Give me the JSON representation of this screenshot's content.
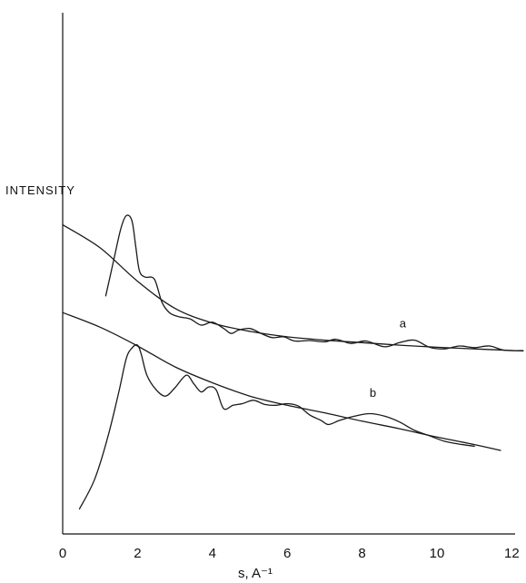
{
  "chart_data": {
    "type": "line",
    "ylabel": "INTENSITY",
    "xlabel": "s, A⁻¹",
    "xlim": [
      0,
      12.4
    ],
    "xticks": [
      "0",
      "2",
      "4",
      "6",
      "8",
      "10",
      "12"
    ],
    "grid": false,
    "series": [
      {
        "name": "a",
        "kind": "smooth",
        "x": [
          0,
          1,
          2,
          3,
          4,
          5,
          6,
          7,
          8,
          9,
          10,
          11,
          12.3
        ],
        "y": [
          7.4,
          6.85,
          6.05,
          5.4,
          5.05,
          4.85,
          4.72,
          4.64,
          4.58,
          4.52,
          4.47,
          4.43,
          4.38
        ]
      },
      {
        "name": "a",
        "kind": "experimental",
        "x": [
          1.15,
          1.35,
          1.55,
          1.7,
          1.85,
          1.95,
          2.05,
          2.2,
          2.45,
          2.65,
          2.85,
          3.1,
          3.4,
          3.7,
          4.0,
          4.3,
          4.5,
          4.7,
          5.0,
          5.3,
          5.6,
          5.9,
          6.2,
          6.6,
          7.0,
          7.3,
          7.7,
          8.1,
          8.6,
          9.0,
          9.4,
          9.8,
          10.2,
          10.6,
          11.0,
          11.4,
          11.8,
          12.3
        ],
        "y": [
          5.7,
          6.5,
          7.3,
          7.62,
          7.5,
          6.9,
          6.3,
          6.15,
          6.1,
          5.55,
          5.3,
          5.2,
          5.15,
          5.0,
          5.07,
          4.92,
          4.8,
          4.88,
          4.92,
          4.8,
          4.7,
          4.72,
          4.62,
          4.63,
          4.6,
          4.66,
          4.56,
          4.62,
          4.48,
          4.58,
          4.64,
          4.47,
          4.43,
          4.5,
          4.46,
          4.5,
          4.4,
          4.39
        ]
      },
      {
        "name": "b",
        "kind": "smooth",
        "x": [
          0,
          1,
          2,
          3,
          4,
          5,
          6,
          7,
          8,
          9,
          10,
          11,
          11.7
        ],
        "y": [
          5.3,
          4.95,
          4.5,
          4.0,
          3.62,
          3.3,
          3.08,
          2.9,
          2.7,
          2.52,
          2.32,
          2.14,
          2.0
        ]
      },
      {
        "name": "b",
        "kind": "experimental",
        "x": [
          0.45,
          0.85,
          1.2,
          1.5,
          1.7,
          1.85,
          2.0,
          2.1,
          2.25,
          2.5,
          2.75,
          3.0,
          3.3,
          3.5,
          3.7,
          3.9,
          4.1,
          4.3,
          4.55,
          4.8,
          5.1,
          5.4,
          5.7,
          6.0,
          6.3,
          6.6,
          6.9,
          7.1,
          7.4,
          7.8,
          8.2,
          8.6,
          9.0,
          9.4,
          9.8,
          10.2,
          10.6,
          11.0
        ],
        "y": [
          0.6,
          1.3,
          2.3,
          3.4,
          4.2,
          4.45,
          4.52,
          4.3,
          3.8,
          3.45,
          3.3,
          3.5,
          3.8,
          3.6,
          3.4,
          3.52,
          3.45,
          3.0,
          3.08,
          3.12,
          3.2,
          3.1,
          3.08,
          3.12,
          3.06,
          2.85,
          2.72,
          2.62,
          2.72,
          2.82,
          2.88,
          2.82,
          2.68,
          2.48,
          2.35,
          2.22,
          2.15,
          2.1
        ]
      }
    ]
  }
}
